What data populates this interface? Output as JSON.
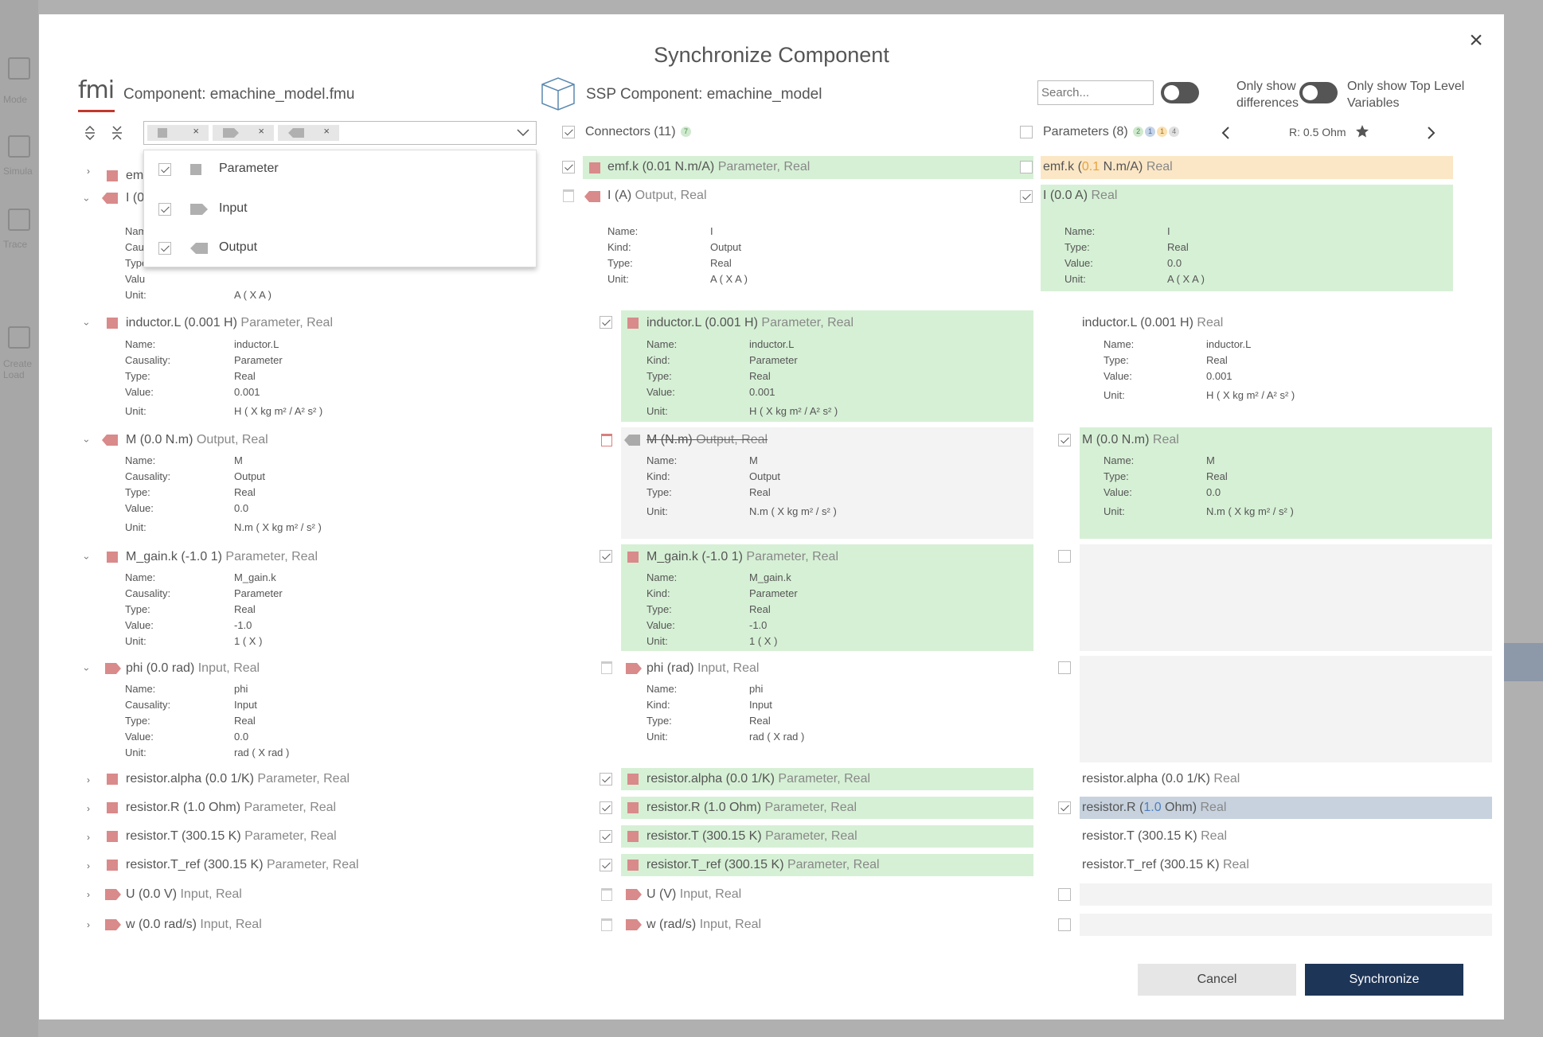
{
  "dialog": {
    "title": "Synchronize Component",
    "close_label": "×"
  },
  "left": {
    "logo": "fmi",
    "title": "Component: emachine_model.fmu"
  },
  "mid": {
    "title": "SSP Component: emachine_model",
    "connectors_label": "Connectors (11)",
    "connectors_badge": "7"
  },
  "right": {
    "search_placeholder": "Search...",
    "toggle1": "Only show differences",
    "toggle2": "Only show Top Level Variables",
    "params_label": "Parameters (8)",
    "badges": [
      "2",
      "1",
      "1",
      "4"
    ],
    "nav_value": "R: 0.5 Ohm"
  },
  "filter": {
    "chips": [
      "×",
      "×",
      "×"
    ],
    "options": [
      "Parameter",
      "Input",
      "Output"
    ]
  },
  "labels": {
    "name": "Name:",
    "causality": "Causality:",
    "kind": "Kind:",
    "type": "Type:",
    "value": "Value:",
    "unit": "Unit:"
  },
  "left_rows": [
    {
      "lbl": "em",
      "meta": ""
    },
    {
      "lbl": "I (0",
      "meta": ""
    },
    {
      "lbl": "inductor.L (0.001 H)",
      "meta": "Parameter, Real"
    },
    {
      "lbl": "M (0.0 N.m)",
      "meta": "Output, Real"
    },
    {
      "lbl": "M_gain.k (-1.0 1)",
      "meta": "Parameter, Real"
    },
    {
      "lbl": "phi (0.0 rad)",
      "meta": "Input, Real"
    },
    {
      "lbl": "resistor.alpha (0.0 1/K)",
      "meta": "Parameter, Real"
    },
    {
      "lbl": "resistor.R (1.0 Ohm)",
      "meta": "Parameter, Real"
    },
    {
      "lbl": "resistor.T (300.15 K)",
      "meta": "Parameter, Real"
    },
    {
      "lbl": "resistor.T_ref (300.15 K)",
      "meta": "Parameter, Real"
    },
    {
      "lbl": "U (0.0 V)",
      "meta": "Input, Real"
    },
    {
      "lbl": "w (0.0 rad/s)",
      "meta": "Input, Real"
    }
  ],
  "left_details": {
    "I": {
      "n": "Nam",
      "c": "Cau",
      "t": "Type",
      "v": "Valu",
      "u": "A ( X A )",
      "partial_unit_label": "Unit:"
    },
    "inductor": {
      "n": "inductor.L",
      "c": "Parameter",
      "t": "Real",
      "v": "0.001",
      "u": "H ( X kg m² / A² s² )"
    },
    "M": {
      "n": "M",
      "c": "Output",
      "t": "Real",
      "v": "0.0",
      "u": "N.m ( X kg m² / s² )"
    },
    "gain": {
      "n": "M_gain.k",
      "c": "Parameter",
      "t": "Real",
      "v": "-1.0",
      "u": "1 ( X )"
    },
    "phi": {
      "n": "phi",
      "c": "Input",
      "t": "Real",
      "v": "0.0",
      "u": "rad ( X rad )"
    }
  },
  "mid_rows": [
    {
      "lbl": "emf.k (0.01 N.m/A)",
      "meta": "Parameter, Real"
    },
    {
      "lbl": "I (A)",
      "meta": "Output, Real"
    },
    {
      "lbl": "inductor.L (0.001 H)",
      "meta": "Parameter, Real"
    },
    {
      "lbl": "M (N.m)",
      "meta": "Output, Real"
    },
    {
      "lbl": "M_gain.k (-1.0 1)",
      "meta": "Parameter, Real"
    },
    {
      "lbl": "phi (rad)",
      "meta": "Input, Real"
    },
    {
      "lbl": "resistor.alpha (0.0 1/K)",
      "meta": "Parameter, Real"
    },
    {
      "lbl": "resistor.R (1.0 Ohm)",
      "meta": "Parameter, Real"
    },
    {
      "lbl": "resistor.T (300.15 K)",
      "meta": "Parameter, Real"
    },
    {
      "lbl": "resistor.T_ref (300.15 K)",
      "meta": "Parameter, Real"
    },
    {
      "lbl": "U (V)",
      "meta": "Input, Real"
    },
    {
      "lbl": "w (rad/s)",
      "meta": "Input, Real"
    }
  ],
  "mid_details": {
    "I": {
      "n": "I",
      "k": "Output",
      "t": "Real",
      "u": "A ( X A )"
    },
    "inductor": {
      "n": "inductor.L",
      "k": "Parameter",
      "t": "Real",
      "v": "0.001",
      "u": "H ( X kg m² / A² s² )"
    },
    "M": {
      "n": "M",
      "k": "Output",
      "t": "Real",
      "u": "N.m ( X kg m² / s² )"
    },
    "gain": {
      "n": "M_gain.k",
      "k": "Parameter",
      "t": "Real",
      "v": "-1.0",
      "u": "1 ( X )"
    },
    "phi": {
      "n": "phi",
      "k": "Input",
      "t": "Real",
      "u": "rad ( X rad )"
    }
  },
  "right_rows": {
    "emf_a": "emf.k (",
    "emf_b": "0.1",
    "emf_c": " N.m/A)",
    "emf_meta": "Real",
    "I": "I (0.0 A)",
    "I_meta": "Real",
    "inductor": "inductor.L (0.001 H)",
    "inductor_meta": "Real",
    "M": "M (0.0 N.m)",
    "M_meta": "Real",
    "alpha": "resistor.alpha (0.0 1/K)",
    "alpha_meta": "Real",
    "R_a": "resistor.R (",
    "R_b": "1.0",
    "R_c": " Ohm)",
    "R_meta": "Real",
    "T": "resistor.T (300.15 K)",
    "T_meta": "Real",
    "Tref": "resistor.T_ref (300.15 K)",
    "Tref_meta": "Real"
  },
  "right_details": {
    "I": {
      "n": "I",
      "t": "Real",
      "v": "0.0",
      "u": "A ( X A )"
    },
    "inductor": {
      "n": "inductor.L",
      "t": "Real",
      "v": "0.001",
      "u": "H ( X kg m² / A² s² )"
    },
    "M": {
      "n": "M",
      "t": "Real",
      "v": "0.0",
      "u": "N.m ( X kg m² / s² )"
    }
  },
  "buttons": {
    "cancel": "Cancel",
    "sync": "Synchronize"
  },
  "bg_sidebar": [
    "Mode",
    "Simula",
    "Trace",
    "Create Load"
  ],
  "colors": {
    "green": "#d6f0d5",
    "orange": "#fbe7c6",
    "blue_highlight": "#c7d2de",
    "primary": "#1d3557",
    "red_icon": "#d98a8a"
  }
}
